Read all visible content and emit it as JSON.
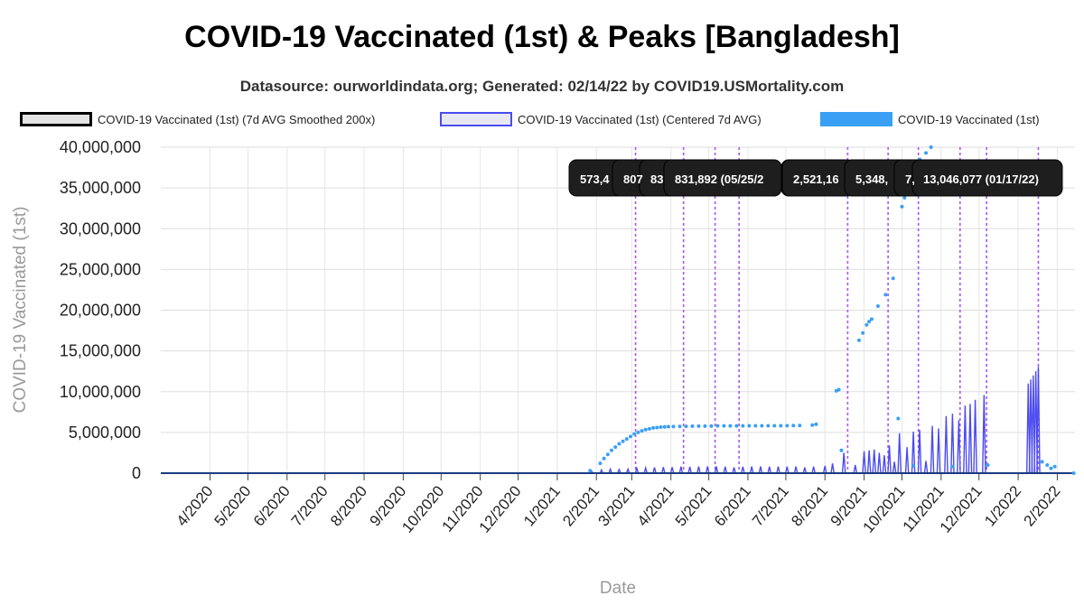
{
  "title": "COVID-19 Vaccinated (1st) & Peaks [Bangladesh]",
  "subtitle": "Datasource: ourworldindata.org; Generated: 02/14/22 by COVID19.USMortality.com",
  "legend": [
    {
      "label": "COVID-19 Vaccinated (1st) (7d AVG Smoothed 200x)",
      "style": "smoothed"
    },
    {
      "label": "COVID-19 Vaccinated (1st) (Centered 7d AVG)",
      "style": "centered"
    },
    {
      "label": "COVID-19 Vaccinated (1st)",
      "style": "raw"
    }
  ],
  "colors": {
    "smoothed": "#000000",
    "centered": "#4b4bf0",
    "raw": "#3aa0f5",
    "peak_line": "#a855f7",
    "tooltip_bg": "#1e1e1e"
  },
  "chart_data": {
    "type": "line",
    "title": "COVID-19 Vaccinated (1st) & Peaks [Bangladesh]",
    "xlabel": "Date",
    "ylabel": "COVID-19 Vaccinated (1st)",
    "ylim": [
      0,
      40000000
    ],
    "grid": true,
    "legend_position": "top",
    "y_ticks": [
      {
        "value": 0,
        "label": "0"
      },
      {
        "value": 5000000,
        "label": "5,000,000"
      },
      {
        "value": 10000000,
        "label": "10,000,000"
      },
      {
        "value": 15000000,
        "label": "15,000,000"
      },
      {
        "value": 20000000,
        "label": "20,000,000"
      },
      {
        "value": 25000000,
        "label": "25,000,000"
      },
      {
        "value": 30000000,
        "label": "30,000,000"
      },
      {
        "value": 35000000,
        "label": "35,000,000"
      },
      {
        "value": 40000000,
        "label": "40,000,000"
      }
    ],
    "x_ticks": [
      "4/2020",
      "5/2020",
      "6/2020",
      "7/2020",
      "8/2020",
      "9/2020",
      "10/2020",
      "11/2020",
      "12/2020",
      "1/2021",
      "2/2021",
      "3/2021",
      "4/2021",
      "5/2021",
      "6/2021",
      "7/2021",
      "8/2021",
      "9/2021",
      "10/2021",
      "11/2021",
      "12/2021",
      "1/2022",
      "2/2022"
    ],
    "peak_dates": [
      "03/04/21",
      "04/11/21",
      "05/06/21",
      "05/25/21",
      "08/19/21",
      "09/20/21",
      "10/14/21",
      "11/16/21",
      "12/07/21",
      "01/17/22"
    ],
    "peak_labels": [
      {
        "text": "573,4",
        "date": "03/04/21"
      },
      {
        "text": "807",
        "date": "03/18/21"
      },
      {
        "text": "83",
        "date": "04/11/21"
      },
      {
        "text": "831,892 (05/25/2",
        "date": "05/06/21"
      },
      {
        "text": "2,521,16",
        "date": "08/19/21"
      },
      {
        "text": "5,348,",
        "date": "09/20/21"
      },
      {
        "text": "7,",
        "date": "10/14/21"
      },
      {
        "text": "13,046,077 (01/17/22)",
        "date": "11/16/21"
      }
    ],
    "series": [
      {
        "name": "COVID-19 Vaccinated (1st)",
        "kind": "points",
        "points": [
          [
            "2021-01-27",
            300000
          ],
          [
            "2021-02-04",
            1200000
          ],
          [
            "2021-02-07",
            1800000
          ],
          [
            "2021-02-10",
            2300000
          ],
          [
            "2021-02-13",
            2800000
          ],
          [
            "2021-02-16",
            3200000
          ],
          [
            "2021-02-19",
            3600000
          ],
          [
            "2021-02-22",
            3900000
          ],
          [
            "2021-02-25",
            4200000
          ],
          [
            "2021-02-28",
            4500000
          ],
          [
            "2021-03-03",
            4800000
          ],
          [
            "2021-03-06",
            5000000
          ],
          [
            "2021-03-09",
            5200000
          ],
          [
            "2021-03-12",
            5350000
          ],
          [
            "2021-03-15",
            5450000
          ],
          [
            "2021-03-18",
            5550000
          ],
          [
            "2021-03-21",
            5600000
          ],
          [
            "2021-03-24",
            5650000
          ],
          [
            "2021-03-27",
            5680000
          ],
          [
            "2021-03-30",
            5700000
          ],
          [
            "2021-04-03",
            5720000
          ],
          [
            "2021-04-08",
            5740000
          ],
          [
            "2021-04-13",
            5750000
          ],
          [
            "2021-04-18",
            5760000
          ],
          [
            "2021-04-23",
            5770000
          ],
          [
            "2021-04-28",
            5780000
          ],
          [
            "2021-05-03",
            5790000
          ],
          [
            "2021-05-08",
            5800000
          ],
          [
            "2021-05-13",
            5800000
          ],
          [
            "2021-05-18",
            5810000
          ],
          [
            "2021-05-23",
            5810000
          ],
          [
            "2021-05-28",
            5810000
          ],
          [
            "2021-06-02",
            5820000
          ],
          [
            "2021-06-07",
            5820000
          ],
          [
            "2021-06-12",
            5820000
          ],
          [
            "2021-06-17",
            5820000
          ],
          [
            "2021-06-22",
            5820000
          ],
          [
            "2021-06-27",
            5820000
          ],
          [
            "2021-07-02",
            5830000
          ],
          [
            "2021-07-07",
            5840000
          ],
          [
            "2021-07-12",
            5850000
          ],
          [
            "2021-07-22",
            5900000
          ],
          [
            "2021-07-25",
            6000000
          ],
          [
            "2021-08-10",
            10100000
          ],
          [
            "2021-08-12",
            10250000
          ],
          [
            "2021-08-14",
            2800000
          ],
          [
            "2021-08-28",
            16300000
          ],
          [
            "2021-08-31",
            17200000
          ],
          [
            "2021-09-03",
            18200000
          ],
          [
            "2021-09-05",
            18600000
          ],
          [
            "2021-09-07",
            18900000
          ],
          [
            "2021-09-12",
            20500000
          ],
          [
            "2021-09-18",
            21900000
          ],
          [
            "2021-09-24",
            23900000
          ],
          [
            "2021-09-28",
            6700000
          ],
          [
            "2021-10-01",
            32700000
          ],
          [
            "2021-10-03",
            33800000
          ],
          [
            "2021-10-05",
            35000000
          ],
          [
            "2021-10-08",
            36500000
          ],
          [
            "2021-10-11",
            37500000
          ],
          [
            "2021-10-15",
            38500000
          ],
          [
            "2021-10-20",
            39300000
          ],
          [
            "2021-10-24",
            40000000
          ],
          [
            "2021-10-10",
            900000
          ],
          [
            "2021-11-10",
            800000
          ],
          [
            "2021-12-08",
            1000000
          ],
          [
            "2022-01-20",
            1400000
          ],
          [
            "2022-01-24",
            1000000
          ],
          [
            "2022-01-27",
            600000
          ],
          [
            "2022-01-30",
            800000
          ],
          [
            "2022-02-14",
            0
          ]
        ]
      },
      {
        "name": "COVID-19 Vaccinated (1st) (Centered 7d AVG)",
        "kind": "spikes",
        "spikes": [
          [
            "2021-01-28",
            300000
          ],
          [
            "2021-02-05",
            400000
          ],
          [
            "2021-02-12",
            500000
          ],
          [
            "2021-02-19",
            450000
          ],
          [
            "2021-02-26",
            500000
          ],
          [
            "2021-03-05",
            600000
          ],
          [
            "2021-03-12",
            650000
          ],
          [
            "2021-03-19",
            700000
          ],
          [
            "2021-03-26",
            750000
          ],
          [
            "2021-04-02",
            750000
          ],
          [
            "2021-04-09",
            800000
          ],
          [
            "2021-04-16",
            780000
          ],
          [
            "2021-04-23",
            820000
          ],
          [
            "2021-04-30",
            830000
          ],
          [
            "2021-05-07",
            830000
          ],
          [
            "2021-05-14",
            800000
          ],
          [
            "2021-05-21",
            700000
          ],
          [
            "2021-05-28",
            800000
          ],
          [
            "2021-06-04",
            820000
          ],
          [
            "2021-06-11",
            830000
          ],
          [
            "2021-06-18",
            800000
          ],
          [
            "2021-06-25",
            820000
          ],
          [
            "2021-07-02",
            800000
          ],
          [
            "2021-07-09",
            820000
          ],
          [
            "2021-07-16",
            700000
          ],
          [
            "2021-07-23",
            800000
          ],
          [
            "2021-08-01",
            900000
          ],
          [
            "2021-08-07",
            1200000
          ],
          [
            "2021-08-16",
            2500000
          ],
          [
            "2021-08-25",
            1000000
          ],
          [
            "2021-09-01",
            2700000
          ],
          [
            "2021-09-05",
            2800000
          ],
          [
            "2021-09-09",
            2900000
          ],
          [
            "2021-09-13",
            2500000
          ],
          [
            "2021-09-17",
            2200000
          ],
          [
            "2021-09-21",
            3400000
          ],
          [
            "2021-09-25",
            1400000
          ],
          [
            "2021-09-29",
            4900000
          ],
          [
            "2021-10-05",
            3200000
          ],
          [
            "2021-10-10",
            5100000
          ],
          [
            "2021-10-15",
            5300000
          ],
          [
            "2021-10-20",
            1500000
          ],
          [
            "2021-10-25",
            5800000
          ],
          [
            "2021-10-30",
            5500000
          ],
          [
            "2021-11-05",
            7000000
          ],
          [
            "2021-11-10",
            7300000
          ],
          [
            "2021-11-15",
            6500000
          ],
          [
            "2021-11-20",
            8300000
          ],
          [
            "2021-11-24",
            8500000
          ],
          [
            "2021-11-28",
            9000000
          ],
          [
            "2021-12-05",
            9600000
          ],
          [
            "2022-01-09",
            11000000
          ],
          [
            "2022-01-11",
            11500000
          ],
          [
            "2022-01-13",
            12000000
          ],
          [
            "2022-01-15",
            12500000
          ],
          [
            "2022-01-17",
            13050000
          ]
        ]
      },
      {
        "name": "COVID-19 Vaccinated (1st) (7d AVG Smoothed 200x)",
        "kind": "baseline",
        "value": 0
      }
    ]
  }
}
